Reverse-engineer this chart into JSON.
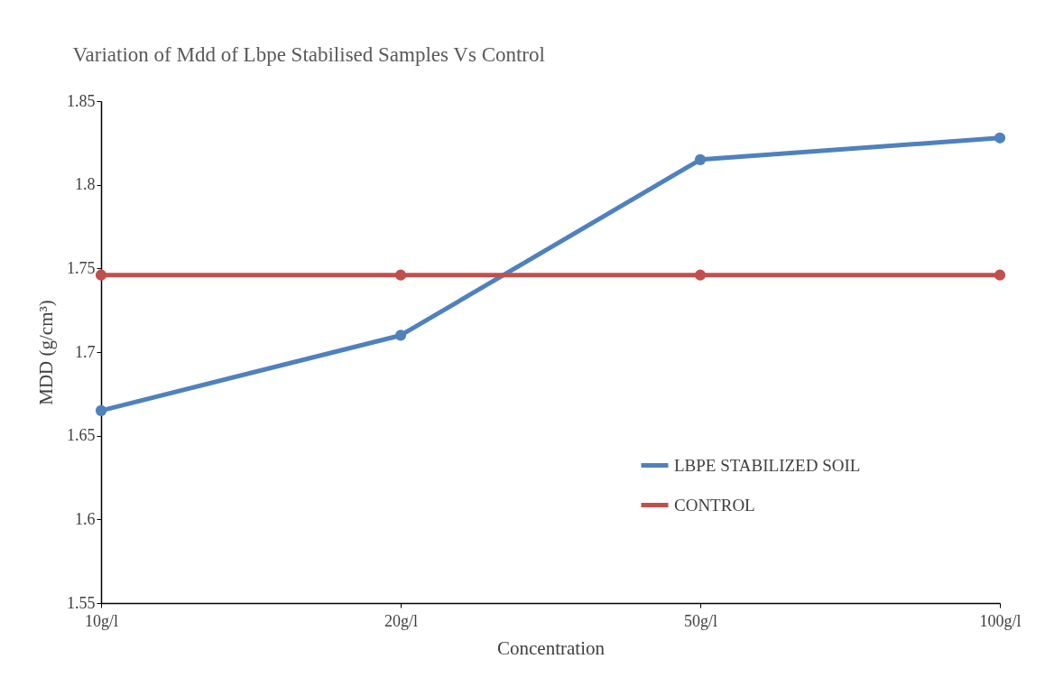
{
  "chart_data": {
    "type": "line",
    "title": "Variation of Mdd of Lbpe Stabilised Samples Vs Control",
    "xlabel": "Concentration",
    "ylabel": "MDD (g/cm³)",
    "categories": [
      "10g/l",
      "20g/l",
      "50g/l",
      "100g/l"
    ],
    "series": [
      {
        "name": "LBPE STABILIZED SOIL",
        "color": "#4f81bd",
        "values": [
          1.665,
          1.71,
          1.815,
          1.828
        ]
      },
      {
        "name": "CONTROL",
        "color": "#c0504d",
        "values": [
          1.746,
          1.746,
          1.746,
          1.746
        ]
      }
    ],
    "ylim": [
      1.55,
      1.85
    ],
    "yticks": [
      1.55,
      1.6,
      1.65,
      1.7,
      1.75,
      1.8,
      1.85
    ],
    "grid": false,
    "legend": "bottom right",
    "marker": "circle",
    "line_style": "solid"
  }
}
